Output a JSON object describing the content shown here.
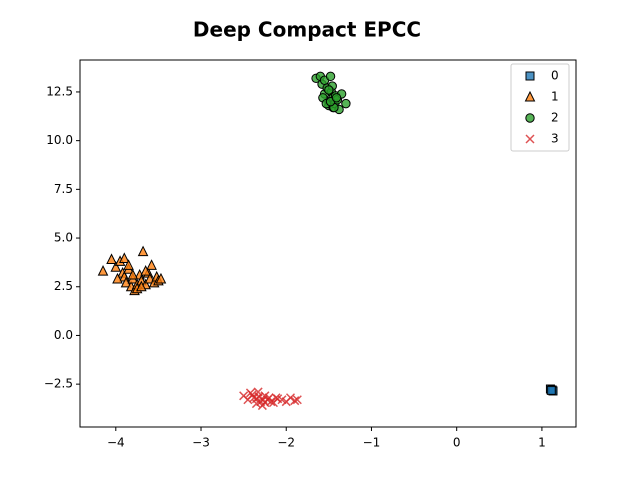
{
  "chart_data": {
    "type": "scatter",
    "title": "Deep Compact EPCC",
    "xlim": [
      -4.42,
      1.4
    ],
    "ylim": [
      -4.7,
      14.14
    ],
    "xticks": [
      {
        "value": -4,
        "label": "−4"
      },
      {
        "value": -3,
        "label": "−3"
      },
      {
        "value": -2,
        "label": "−2"
      },
      {
        "value": -1,
        "label": "−1"
      },
      0,
      1
    ],
    "yticks": [
      {
        "value": -2.5,
        "label": "−2.5"
      },
      {
        "value": 0,
        "label": "0.0"
      },
      2.5,
      {
        "value": 5,
        "label": "5.0"
      },
      7.5,
      {
        "value": 10,
        "label": "10.0"
      },
      12.5
    ],
    "legend": "upper right",
    "series": [
      {
        "name": "0",
        "color": "#1f77b4",
        "marker": "s",
        "x": [
          1.1,
          1.12,
          1.13,
          1.11
        ],
        "y": [
          -2.75,
          -2.8,
          -2.85,
          -2.82
        ]
      },
      {
        "name": "1",
        "color": "#ff7f0e",
        "marker": "^",
        "x": [
          -4.15,
          -4.05,
          -4.0,
          -3.95,
          -3.92,
          -3.9,
          -3.88,
          -3.85,
          -3.82,
          -3.8,
          -3.78,
          -3.75,
          -3.72,
          -3.7,
          -3.68,
          -3.65,
          -3.62,
          -3.6,
          -3.58,
          -3.55,
          -3.52,
          -3.5,
          -3.47,
          -3.9,
          -3.85,
          -3.75,
          -3.65,
          -3.7,
          -3.8,
          -3.98
        ],
        "y": [
          3.3,
          3.9,
          3.5,
          3.8,
          3.2,
          3.0,
          2.7,
          3.4,
          2.5,
          2.9,
          2.3,
          2.6,
          3.1,
          2.8,
          4.3,
          2.6,
          3.2,
          2.9,
          3.6,
          2.7,
          3.0,
          2.8,
          2.9,
          3.95,
          3.6,
          2.4,
          3.3,
          2.5,
          3.1,
          2.9
        ]
      },
      {
        "name": "2",
        "color": "#2ca02c",
        "marker": "o",
        "x": [
          -1.65,
          -1.6,
          -1.58,
          -1.55,
          -1.55,
          -1.52,
          -1.5,
          -1.5,
          -1.48,
          -1.47,
          -1.45,
          -1.45,
          -1.43,
          -1.42,
          -1.4,
          -1.38,
          -1.35,
          -1.3,
          -1.57,
          -1.53,
          -1.46,
          -1.44,
          -1.5,
          -1.48,
          -1.41
        ],
        "y": [
          13.2,
          13.3,
          12.9,
          13.1,
          12.4,
          12.7,
          12.0,
          11.8,
          13.3,
          12.5,
          11.7,
          12.2,
          11.9,
          12.3,
          12.1,
          11.6,
          12.4,
          11.9,
          12.2,
          11.9,
          12.8,
          11.7,
          12.6,
          12.0,
          12.2
        ]
      },
      {
        "name": "3",
        "color": "#d62728",
        "marker": "x",
        "x": [
          -2.5,
          -2.45,
          -2.42,
          -2.38,
          -2.35,
          -2.33,
          -2.3,
          -2.28,
          -2.25,
          -2.22,
          -2.2,
          -2.15,
          -2.1,
          -2.05,
          -2.0,
          -1.95,
          -1.9,
          -1.87,
          -2.4,
          -2.32,
          -2.27,
          -2.18,
          -2.12,
          -2.35,
          -2.25
        ],
        "y": [
          -3.1,
          -3.3,
          -2.95,
          -3.2,
          -3.5,
          -2.9,
          -3.4,
          -3.6,
          -3.1,
          -3.3,
          -3.2,
          -3.45,
          -3.25,
          -3.3,
          -3.4,
          -3.2,
          -3.35,
          -3.3,
          -3.05,
          -3.15,
          -3.3,
          -3.4,
          -3.2,
          -3.25,
          -3.45
        ]
      }
    ]
  }
}
